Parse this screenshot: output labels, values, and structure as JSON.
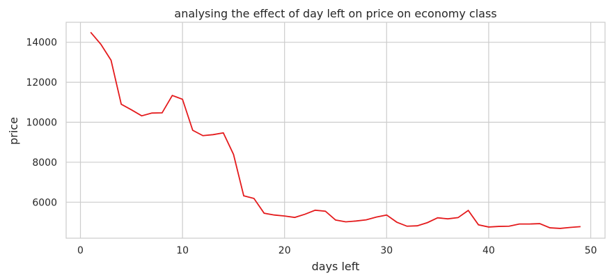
{
  "chart_data": {
    "type": "line",
    "title": "analysing the effect of day left on price on economy class",
    "xlabel": "days left",
    "ylabel": "price",
    "xlim": [
      -1.4,
      51.4
    ],
    "ylim": [
      4200,
      15000
    ],
    "xticks": [
      0,
      10,
      20,
      30,
      40,
      50
    ],
    "yticks": [
      6000,
      8000,
      10000,
      12000,
      14000
    ],
    "grid": true,
    "line_color": "#e41a1c",
    "series": [
      {
        "x": [
          1,
          2,
          3,
          4,
          5,
          6,
          7,
          8,
          9,
          10,
          11,
          12,
          13,
          14,
          15,
          16,
          17,
          18,
          19,
          20,
          21,
          22,
          23,
          24,
          25,
          26,
          27,
          28,
          29,
          30,
          31,
          32,
          33,
          34,
          35,
          36,
          37,
          38,
          39,
          40,
          41,
          42,
          43,
          44,
          45,
          46,
          47,
          48,
          49
        ],
        "values": [
          14500,
          13900,
          13100,
          10900,
          10620,
          10320,
          10460,
          10470,
          11340,
          11150,
          9600,
          9330,
          9380,
          9470,
          8390,
          6320,
          6190,
          5450,
          5360,
          5310,
          5240,
          5400,
          5600,
          5550,
          5110,
          5020,
          5060,
          5120,
          5260,
          5360,
          5000,
          4800,
          4820,
          4980,
          5220,
          5170,
          5230,
          5590,
          4870,
          4760,
          4790,
          4800,
          4910,
          4910,
          4930,
          4720,
          4690,
          4740,
          4780
        ]
      }
    ]
  }
}
